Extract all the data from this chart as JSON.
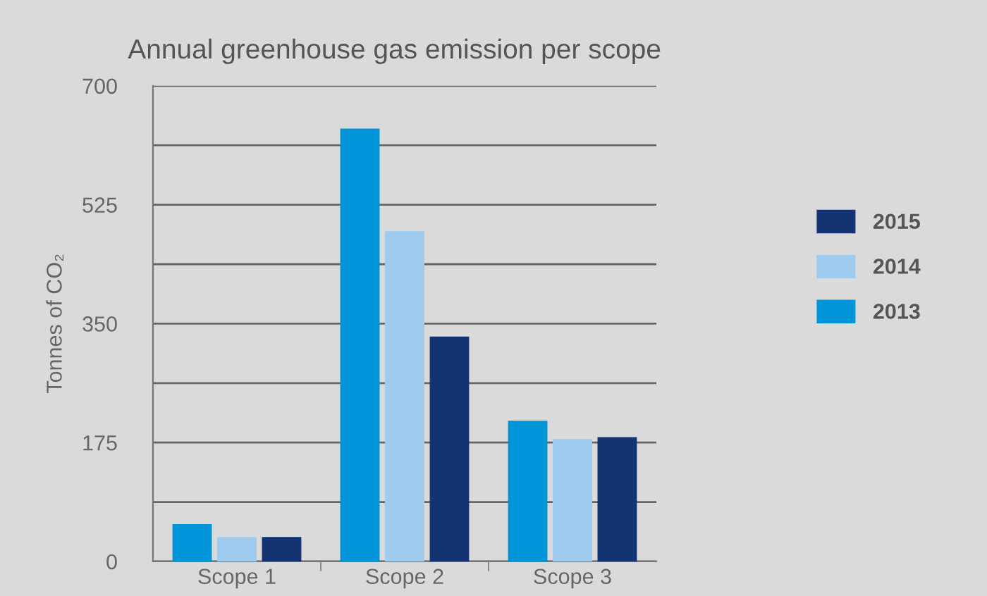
{
  "chart_data": {
    "type": "bar",
    "title": "Annual greenhouse gas emission per scope",
    "ylabel": "Tonnes of CO₂",
    "categories": [
      "Scope 1",
      "Scope 2",
      "Scope 3"
    ],
    "series": [
      {
        "name": "2013",
        "color": "#0095d8",
        "values": [
          55,
          637,
          207
        ]
      },
      {
        "name": "2014",
        "color": "#9ecbee",
        "values": [
          36,
          486,
          180
        ]
      },
      {
        "name": "2015",
        "color": "#133372",
        "values": [
          36,
          331,
          183
        ]
      }
    ],
    "ylim": [
      0,
      700
    ],
    "yticks": [
      0,
      {
        "value": 87.5,
        "label": null
      },
      175,
      {
        "value": 262.5,
        "label": null
      },
      350,
      {
        "value": 437.5,
        "label": null
      },
      525,
      {
        "value": 612.5,
        "label": null
      },
      700
    ],
    "grid": "y",
    "legend": "right"
  }
}
